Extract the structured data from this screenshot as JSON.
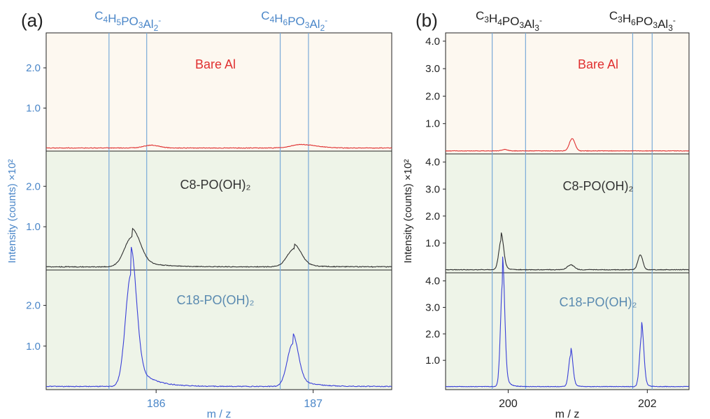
{
  "chart_data": [
    {
      "id": "a",
      "type": "line",
      "panel_letter": "(a)",
      "xlabel": "m / z",
      "ylabel": "Intensity (counts) ×10²",
      "xlim": [
        185.3,
        187.5
      ],
      "xticks": [
        {
          "value": 186,
          "label": "186"
        },
        {
          "value": 187,
          "label": "187"
        }
      ],
      "ylim": [
        0,
        2.8
      ],
      "yticks": [
        {
          "value": 1.0,
          "label": "1.0"
        },
        {
          "value": 2.0,
          "label": "2.0"
        }
      ],
      "peak_labels": [
        {
          "base": "C",
          "parts": [
            [
              "C",
              ""
            ],
            [
              "4",
              "sub"
            ],
            [
              "H",
              ""
            ],
            [
              "5",
              "sub"
            ],
            [
              "PO",
              ""
            ],
            [
              "3",
              "sub"
            ],
            [
              "Al",
              ""
            ],
            [
              "2",
              "sub"
            ],
            [
              "-",
              "sup"
            ]
          ],
          "x_range": [
            185.7,
            185.94
          ]
        },
        {
          "base": "C",
          "parts": [
            [
              "C",
              ""
            ],
            [
              "4",
              "sub"
            ],
            [
              "H",
              ""
            ],
            [
              "6",
              "sub"
            ],
            [
              "PO",
              ""
            ],
            [
              "3",
              "sub"
            ],
            [
              "Al",
              ""
            ],
            [
              "2",
              "sub"
            ],
            [
              "-",
              "sup"
            ]
          ],
          "x_range": [
            186.79,
            186.97
          ]
        }
      ],
      "marker_lines": [
        185.7,
        185.94,
        186.79,
        186.97
      ],
      "series": [
        {
          "name": "Bare Al",
          "color": "#e03030",
          "background": "#fdf8f0",
          "noise": 0.03,
          "peaks": [
            {
              "center": 185.97,
              "height": 0.07,
              "width": 0.05
            },
            {
              "center": 186.97,
              "height": 0.06,
              "width": 0.08
            },
            {
              "center": 186.9,
              "height": 0.04,
              "width": 0.05
            }
          ]
        },
        {
          "name": "C8-PO(OH)₂",
          "color": "#303030",
          "background": "#eef4e8",
          "noise": 0.04,
          "peaks": [
            {
              "center": 185.85,
              "height": 0.75,
              "width": 0.05,
              "tail": 0.13
            },
            {
              "center": 186.88,
              "height": 0.45,
              "width": 0.045,
              "tail": 0.08
            }
          ]
        },
        {
          "name": "C18-PO(OH)₂",
          "color": "#3a40d8",
          "background": "#eef4e8",
          "noise": 0.04,
          "peaks": [
            {
              "center": 185.84,
              "height": 2.75,
              "width": 0.035,
              "tail": 0.1
            },
            {
              "center": 186.87,
              "height": 1.05,
              "width": 0.035,
              "tail": 0.09
            }
          ]
        }
      ]
    },
    {
      "id": "b",
      "type": "line",
      "panel_letter": "(b)",
      "xlabel": "m / z",
      "ylabel": "Intensity (counts) ×10²",
      "xlim": [
        199.1,
        202.6
      ],
      "xticks": [
        {
          "value": 200,
          "label": "200"
        },
        {
          "value": 202,
          "label": "202"
        }
      ],
      "ylim": [
        0,
        4.2
      ],
      "yticks": [
        {
          "value": 1.0,
          "label": "1.0"
        },
        {
          "value": 2.0,
          "label": "2.0"
        },
        {
          "value": 3.0,
          "label": "3.0"
        },
        {
          "value": 4.0,
          "label": "4.0"
        }
      ],
      "peak_labels": [
        {
          "parts": [
            [
              "C",
              ""
            ],
            [
              "3",
              "sub"
            ],
            [
              "H",
              ""
            ],
            [
              "4",
              "sub"
            ],
            [
              "PO",
              ""
            ],
            [
              "3",
              "sub"
            ],
            [
              "Al",
              ""
            ],
            [
              "3",
              "sub"
            ],
            [
              "-",
              "sup"
            ]
          ],
          "x_range": [
            199.77,
            200.25
          ]
        },
        {
          "parts": [
            [
              "C",
              ""
            ],
            [
              "3",
              "sub"
            ],
            [
              "H",
              ""
            ],
            [
              "6",
              "sub"
            ],
            [
              "PO",
              ""
            ],
            [
              "3",
              "sub"
            ],
            [
              "Al",
              ""
            ],
            [
              "3",
              "sub"
            ],
            [
              "-",
              "sup"
            ]
          ],
          "x_range": [
            201.79,
            202.07
          ]
        }
      ],
      "marker_lines": [
        199.77,
        200.25,
        201.79,
        202.07
      ],
      "series": [
        {
          "name": "Bare Al",
          "color": "#e03030",
          "background": "#fdf8f0",
          "noise": 0.03,
          "peaks": [
            {
              "center": 200.92,
              "height": 0.45,
              "width": 0.04
            },
            {
              "center": 199.95,
              "height": 0.05,
              "width": 0.04
            }
          ]
        },
        {
          "name": "C8-PO(OH)₂",
          "color": "#303030",
          "background": "#eef4e8",
          "noise": 0.04,
          "peaks": [
            {
              "center": 199.9,
              "height": 1.1,
              "width": 0.035,
              "tail": 0.05
            },
            {
              "center": 200.9,
              "height": 0.18,
              "width": 0.05
            },
            {
              "center": 201.9,
              "height": 0.55,
              "width": 0.035
            }
          ]
        },
        {
          "name": "C18-PO(OH)₂",
          "color": "#3a40d8",
          "background": "#eef4e8",
          "noise": 0.04,
          "peaks": [
            {
              "center": 199.92,
              "height": 3.95,
              "width": 0.03,
              "tail": 0.05
            },
            {
              "center": 200.9,
              "height": 1.2,
              "width": 0.03,
              "tail": 0.04
            },
            {
              "center": 201.92,
              "height": 1.95,
              "width": 0.03,
              "tail": 0.04
            }
          ]
        }
      ]
    }
  ],
  "colors": {
    "marker_line": "#7aaad8",
    "axis_label_a": "#4a86c8",
    "panel_text": "#222222",
    "label_C18": "#5a8ab0",
    "label_bare": "#e03030",
    "label_C8": "#333333"
  }
}
